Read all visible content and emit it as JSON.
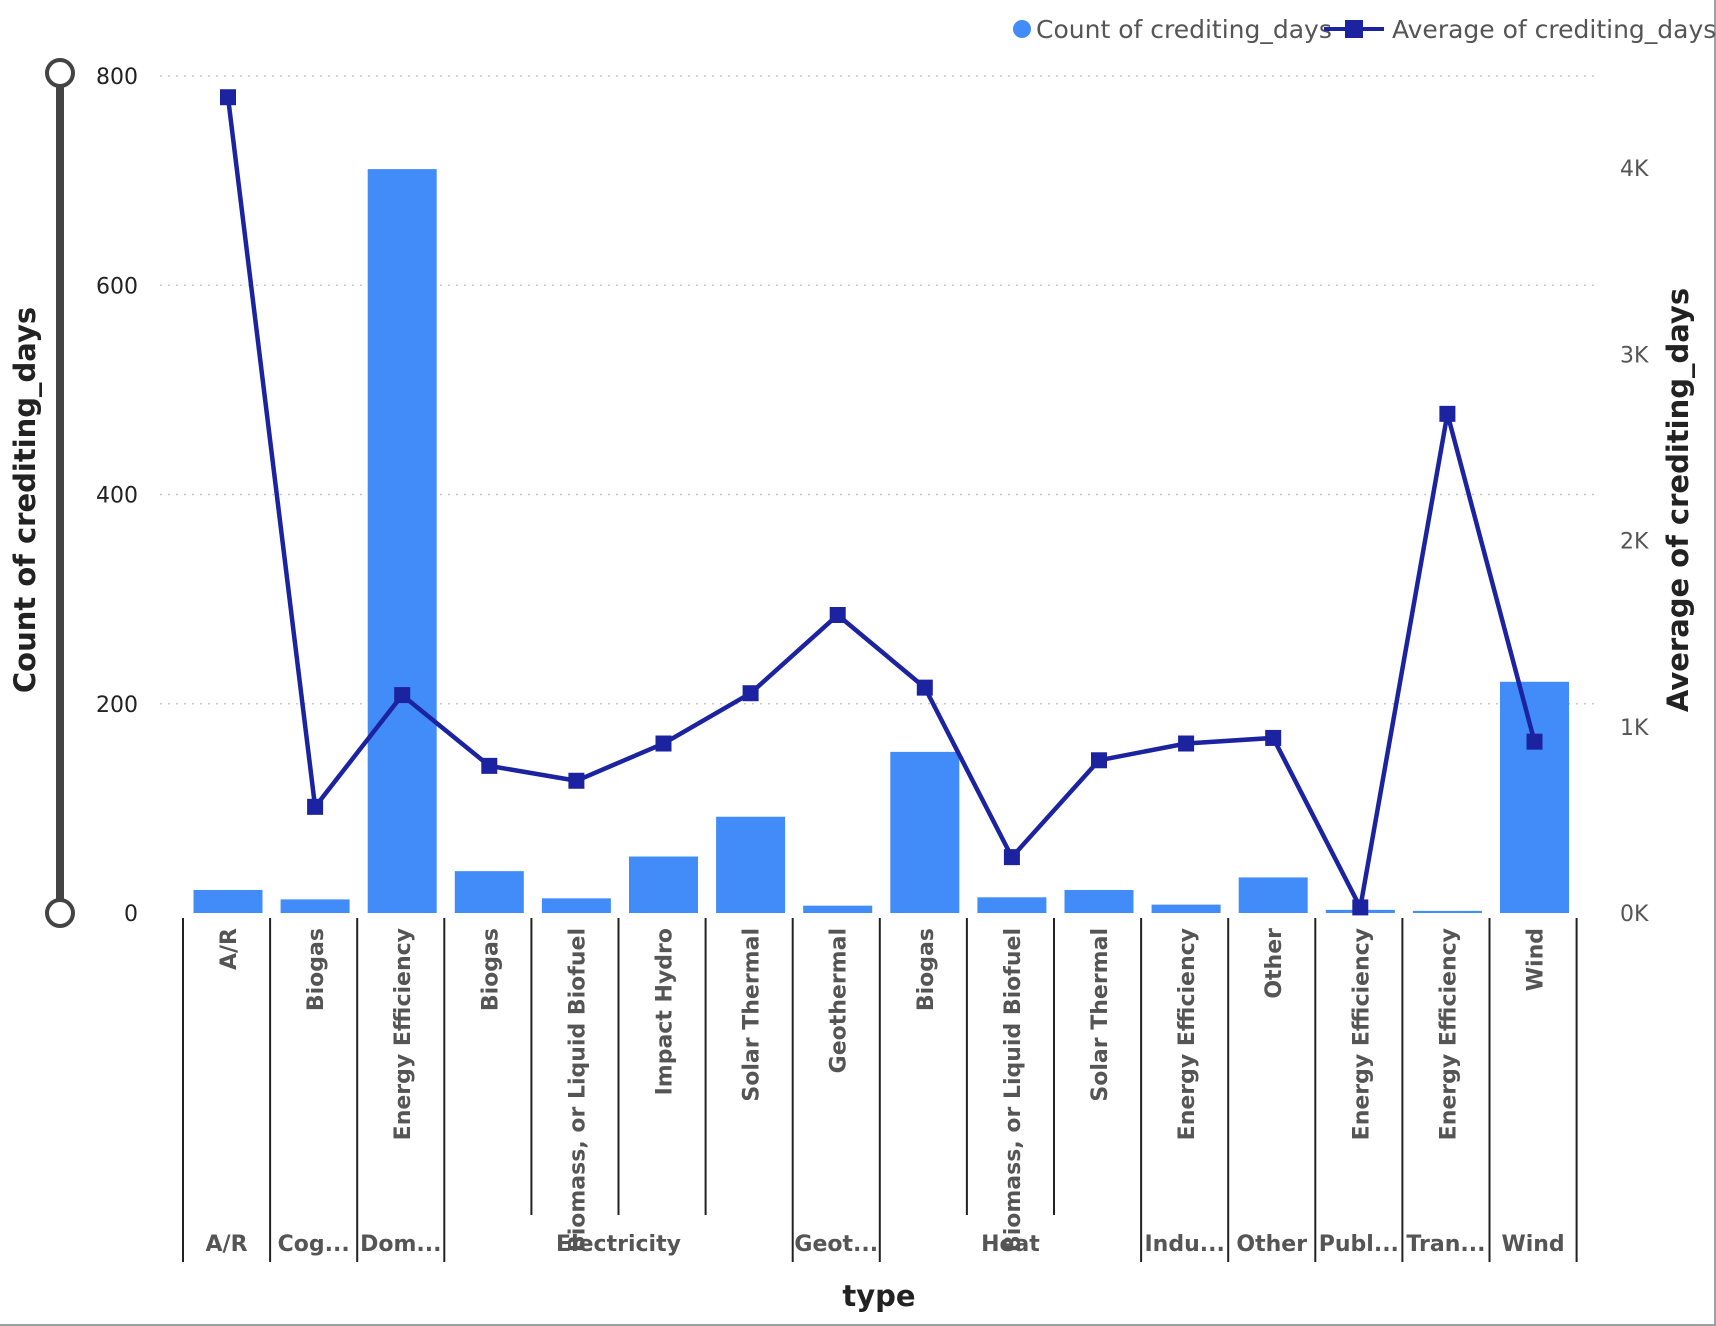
{
  "chart_data": {
    "type": "bar",
    "combo": "bar-line",
    "xlabel": "type",
    "y_left_label": "Count of crediting_days",
    "y_right_label": "Average of crediting_days",
    "y_left_ticks": [
      "0",
      "200",
      "400",
      "600",
      "800"
    ],
    "y_left_lim": [
      0,
      800
    ],
    "y_right_ticks": [
      "0K",
      "1K",
      "2K",
      "3K",
      "4K"
    ],
    "y_right_lim": [
      0,
      4500
    ],
    "grid": true,
    "legend_position": "top-right",
    "colors": {
      "bars": "#418CF8",
      "line": "#1C23A0"
    },
    "groups": [
      {
        "label": "A/R",
        "span": 1
      },
      {
        "label": "Cog...",
        "span": 1
      },
      {
        "label": "Dom...",
        "span": 1
      },
      {
        "label": "Electricity",
        "span": 4
      },
      {
        "label": "Geot...",
        "span": 1
      },
      {
        "label": "Heat",
        "span": 3
      },
      {
        "label": "Indu...",
        "span": 1
      },
      {
        "label": "Other",
        "span": 1
      },
      {
        "label": "Publ...",
        "span": 1
      },
      {
        "label": "Tran...",
        "span": 1
      },
      {
        "label": "Wind",
        "span": 1
      }
    ],
    "categories": [
      "A/R",
      "Biogas",
      "Energy Efficiency",
      "Biogas",
      "Biomass, or Liquid Biofuel",
      "Impact Hydro",
      "Solar Thermal",
      "Geothermal",
      "Biogas",
      "Biomass, or Liquid Biofuel",
      "Solar Thermal",
      "Energy Efficiency",
      "Other",
      "Energy Efficiency",
      "Energy Efficiency",
      "Wind"
    ],
    "series": [
      {
        "name": "Count of crediting_days",
        "kind": "bar",
        "axis": "left",
        "values": [
          22,
          13,
          711,
          40,
          14,
          54,
          92,
          7,
          154,
          15,
          22,
          8,
          34,
          3,
          2,
          221
        ]
      },
      {
        "name": "Average of crediting_days",
        "kind": "line",
        "axis": "right",
        "values": [
          4380,
          570,
          1170,
          790,
          710,
          910,
          1180,
          1600,
          1210,
          300,
          820,
          910,
          940,
          30,
          2680,
          920
        ]
      }
    ]
  }
}
